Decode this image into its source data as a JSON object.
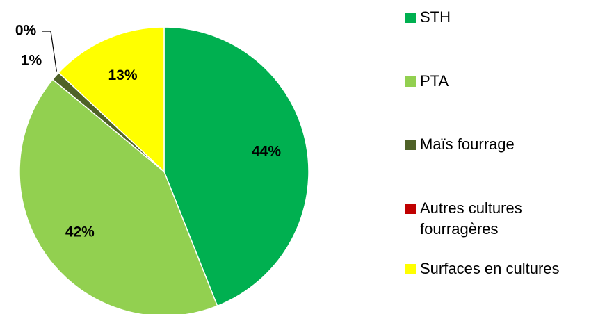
{
  "chart_data": {
    "type": "pie",
    "categories": [
      "STH",
      "PTA",
      "Maïs fourrage",
      "Autres cultures fourragères",
      "Surfaces en cultures"
    ],
    "values": [
      44,
      42,
      1,
      0,
      13
    ],
    "value_labels": [
      "44%",
      "42%",
      "1%",
      "0%",
      "13%"
    ],
    "colors": [
      "#00b050",
      "#92d050",
      "#4f6228",
      "#c00000",
      "#ffff00"
    ],
    "legend": "right"
  }
}
